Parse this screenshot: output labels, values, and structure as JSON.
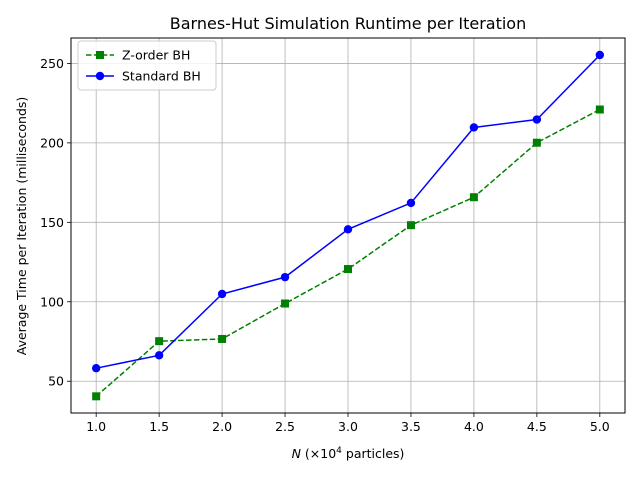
{
  "chart_data": {
    "type": "line",
    "title": "Barnes-Hut Simulation Runtime per Iteration",
    "xlabel_prefix": "N",
    "xlabel_mid": " (×10",
    "xlabel_exp": "4",
    "xlabel_suffix": " particles)",
    "ylabel": "Average Time per Iteration (milliseconds)",
    "x": [
      1.0,
      1.5,
      2.0,
      2.5,
      3.0,
      3.5,
      4.0,
      4.5,
      5.0
    ],
    "x_tick_labels": [
      "1.0",
      "1.5",
      "2.0",
      "2.5",
      "3.0",
      "3.5",
      "4.0",
      "4.5",
      "5.0"
    ],
    "y_ticks": [
      50,
      100,
      150,
      200,
      250
    ],
    "xlim": [
      0.8,
      5.2
    ],
    "ylim": [
      30,
      266
    ],
    "grid": true,
    "legend_position": "top-left",
    "series": [
      {
        "name": "Z-order BH",
        "color": "#008000",
        "line_style": "dashed",
        "marker": "square",
        "values": [
          40.5,
          75.2,
          76.6,
          98.9,
          120.6,
          148.2,
          165.8,
          200.1,
          221.0
        ]
      },
      {
        "name": "Standard BH",
        "color": "#0000ff",
        "line_style": "solid",
        "marker": "circle",
        "values": [
          58.2,
          66.3,
          104.9,
          115.5,
          145.6,
          162.2,
          209.7,
          214.7,
          255.3
        ]
      }
    ]
  }
}
